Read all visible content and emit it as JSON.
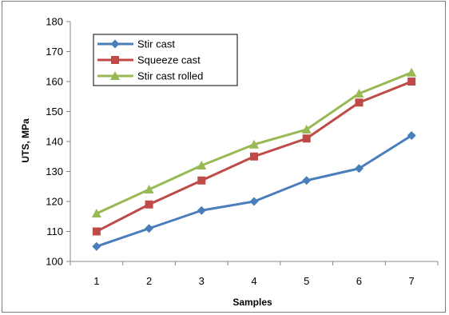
{
  "chart_data": {
    "type": "line",
    "title": "",
    "xlabel": "Samples",
    "ylabel": "UTS, MPa",
    "x": [
      1,
      2,
      3,
      4,
      5,
      6,
      7
    ],
    "ylim": [
      100,
      180
    ],
    "yticks": [
      100,
      110,
      120,
      130,
      140,
      150,
      160,
      170,
      180
    ],
    "grid": false,
    "legend_position": "top-left",
    "series": [
      {
        "name": "Stir cast",
        "values": [
          105,
          111,
          117,
          120,
          127,
          131,
          142
        ],
        "color": "#4a7ebb",
        "marker": "diamond"
      },
      {
        "name": "Squeeze cast",
        "values": [
          110,
          119,
          127,
          135,
          141,
          153,
          160
        ],
        "color": "#be4b48",
        "marker": "square"
      },
      {
        "name": "Stir cast rolled",
        "values": [
          116,
          124,
          132,
          139,
          144,
          156,
          163
        ],
        "color": "#98b954",
        "marker": "triangle"
      }
    ]
  }
}
